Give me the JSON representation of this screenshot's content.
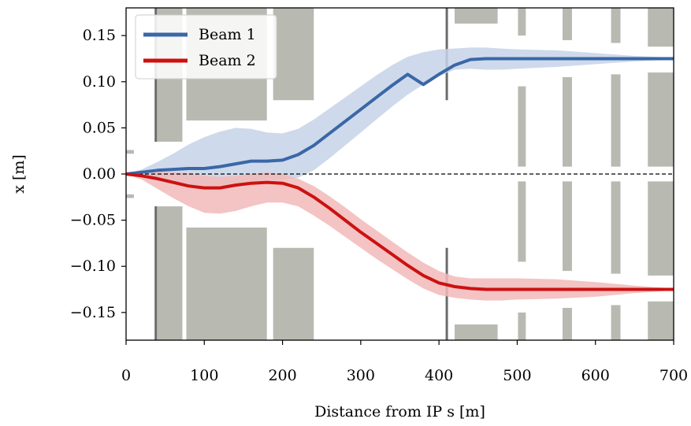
{
  "chart_data": {
    "type": "line",
    "xlabel": "Distance from IP s [m]",
    "ylabel": "x [m]",
    "xlim": [
      0,
      700
    ],
    "ylim": [
      -0.18,
      0.18
    ],
    "xticks": [
      0,
      100,
      200,
      300,
      400,
      500,
      600,
      700
    ],
    "yticks": [
      -0.15,
      -0.1,
      -0.05,
      0.0,
      0.05,
      0.1,
      0.15
    ],
    "xtick_labels": [
      "0",
      "100",
      "200",
      "300",
      "400",
      "500",
      "600",
      "700"
    ],
    "ytick_labels": [
      "−0.15",
      "−0.10",
      "−0.05",
      "0.00",
      "0.05",
      "0.10",
      "0.15"
    ],
    "legend_position": "top-left",
    "reference_line": {
      "y": 0,
      "style": "dashed",
      "color": "#000000"
    },
    "series": [
      {
        "name": "Beam 1",
        "color": "#3a67a8",
        "band_color": "#c5d3e8",
        "x": [
          0,
          20,
          40,
          60,
          80,
          100,
          120,
          140,
          160,
          180,
          200,
          220,
          240,
          260,
          280,
          300,
          320,
          340,
          360,
          380,
          400,
          420,
          440,
          460,
          480,
          500,
          550,
          600,
          650,
          700
        ],
        "y": [
          0,
          0.002,
          0.004,
          0.005,
          0.006,
          0.006,
          0.008,
          0.011,
          0.014,
          0.014,
          0.015,
          0.021,
          0.031,
          0.044,
          0.057,
          0.07,
          0.083,
          0.096,
          0.108,
          0.097,
          0.108,
          0.118,
          0.124,
          0.125,
          0.125,
          0.125,
          0.125,
          0.125,
          0.125,
          0.125
        ],
        "upper": [
          0,
          0.005,
          0.013,
          0.022,
          0.032,
          0.04,
          0.046,
          0.05,
          0.049,
          0.045,
          0.044,
          0.049,
          0.059,
          0.071,
          0.083,
          0.095,
          0.107,
          0.118,
          0.127,
          0.132,
          0.135,
          0.136,
          0.137,
          0.137,
          0.136,
          0.135,
          0.134,
          0.131,
          0.128,
          0.126
        ],
        "lower": [
          0,
          0.0,
          -0.005,
          -0.01,
          -0.014,
          -0.014,
          -0.013,
          -0.012,
          -0.008,
          -0.006,
          -0.006,
          -0.004,
          0.004,
          0.017,
          0.031,
          0.045,
          0.059,
          0.073,
          0.086,
          0.097,
          0.106,
          0.113,
          0.114,
          0.113,
          0.113,
          0.114,
          0.116,
          0.119,
          0.122,
          0.124
        ]
      },
      {
        "name": "Beam 2",
        "color": "#cc1111",
        "band_color": "#f2b8b8",
        "x": [
          0,
          20,
          40,
          60,
          80,
          100,
          120,
          140,
          160,
          180,
          200,
          220,
          240,
          260,
          280,
          300,
          320,
          340,
          360,
          380,
          400,
          420,
          440,
          460,
          480,
          500,
          550,
          600,
          650,
          700
        ],
        "y": [
          0,
          -0.002,
          -0.005,
          -0.009,
          -0.013,
          -0.015,
          -0.015,
          -0.012,
          -0.01,
          -0.009,
          -0.01,
          -0.015,
          -0.025,
          -0.037,
          -0.05,
          -0.063,
          -0.075,
          -0.087,
          -0.099,
          -0.11,
          -0.118,
          -0.122,
          -0.124,
          -0.125,
          -0.125,
          -0.125,
          -0.125,
          -0.125,
          -0.125,
          -0.125
        ],
        "upper": [
          0,
          0.0,
          0.002,
          0.002,
          0.001,
          -0.002,
          -0.003,
          -0.002,
          0.0,
          0.002,
          0.0,
          -0.005,
          -0.013,
          -0.024,
          -0.036,
          -0.049,
          -0.061,
          -0.073,
          -0.085,
          -0.096,
          -0.105,
          -0.111,
          -0.113,
          -0.113,
          -0.113,
          -0.113,
          -0.114,
          -0.117,
          -0.121,
          -0.124
        ],
        "lower": [
          0,
          -0.006,
          -0.016,
          -0.026,
          -0.035,
          -0.042,
          -0.043,
          -0.04,
          -0.035,
          -0.031,
          -0.031,
          -0.035,
          -0.045,
          -0.056,
          -0.068,
          -0.08,
          -0.092,
          -0.103,
          -0.114,
          -0.124,
          -0.131,
          -0.134,
          -0.136,
          -0.137,
          -0.137,
          -0.136,
          -0.135,
          -0.133,
          -0.129,
          -0.126
        ]
      }
    ],
    "elements": {
      "color": "#b8bab2",
      "blocks": [
        {
          "x0": 0,
          "x1": 10,
          "y0": 0.022,
          "y1": 0.026
        },
        {
          "x0": 0,
          "x1": 10,
          "y0": -0.026,
          "y1": -0.022
        },
        {
          "x0": 37,
          "x1": 40,
          "y0": 0.035,
          "y1": 0.18
        },
        {
          "x0": 37,
          "x1": 40,
          "y0": -0.18,
          "y1": -0.035
        },
        {
          "x0": 40,
          "x1": 72,
          "y0": 0.035,
          "y1": 0.18
        },
        {
          "x0": 40,
          "x1": 72,
          "y0": -0.18,
          "y1": -0.035
        },
        {
          "x0": 77,
          "x1": 180,
          "y0": 0.058,
          "y1": 0.18
        },
        {
          "x0": 77,
          "x1": 180,
          "y0": -0.18,
          "y1": -0.058
        },
        {
          "x0": 188,
          "x1": 240,
          "y0": 0.08,
          "y1": 0.18
        },
        {
          "x0": 188,
          "x1": 240,
          "y0": -0.18,
          "y1": -0.08
        },
        {
          "x0": 420,
          "x1": 475,
          "y0": 0.163,
          "y1": 0.18
        },
        {
          "x0": 420,
          "x1": 475,
          "y0": -0.18,
          "y1": -0.163
        },
        {
          "x0": 501,
          "x1": 511,
          "y0": 0.15,
          "y1": 0.18
        },
        {
          "x0": 501,
          "x1": 511,
          "y0": 0.008,
          "y1": 0.095
        },
        {
          "x0": 501,
          "x1": 511,
          "y0": -0.095,
          "y1": -0.008
        },
        {
          "x0": 501,
          "x1": 511,
          "y0": -0.18,
          "y1": -0.15
        },
        {
          "x0": 558,
          "x1": 570,
          "y0": 0.145,
          "y1": 0.18
        },
        {
          "x0": 558,
          "x1": 570,
          "y0": 0.008,
          "y1": 0.105
        },
        {
          "x0": 558,
          "x1": 570,
          "y0": -0.105,
          "y1": -0.008
        },
        {
          "x0": 558,
          "x1": 570,
          "y0": -0.18,
          "y1": -0.145
        },
        {
          "x0": 620,
          "x1": 632,
          "y0": 0.142,
          "y1": 0.18
        },
        {
          "x0": 620,
          "x1": 632,
          "y0": 0.008,
          "y1": 0.108
        },
        {
          "x0": 620,
          "x1": 632,
          "y0": -0.108,
          "y1": -0.008
        },
        {
          "x0": 620,
          "x1": 632,
          "y0": -0.18,
          "y1": -0.142
        },
        {
          "x0": 667,
          "x1": 700,
          "y0": 0.138,
          "y1": 0.18
        },
        {
          "x0": 667,
          "x1": 700,
          "y0": 0.008,
          "y1": 0.11
        },
        {
          "x0": 667,
          "x1": 700,
          "y0": -0.11,
          "y1": -0.008
        },
        {
          "x0": 667,
          "x1": 700,
          "y0": -0.18,
          "y1": -0.138
        }
      ]
    }
  }
}
